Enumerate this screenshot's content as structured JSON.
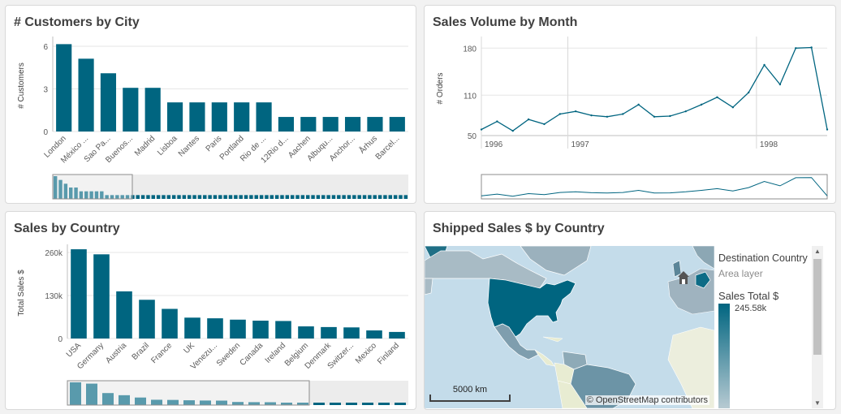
{
  "colors": {
    "primary": "#006580",
    "bg": "#f2f2f2",
    "grid": "#e6e6e6",
    "scroll": "#ececec"
  },
  "panels": {
    "customers": {
      "title": "# Customers by City"
    },
    "sales_volume": {
      "title": "Sales Volume by Month"
    },
    "sales_country": {
      "title": "Sales by Country"
    },
    "shipped": {
      "title": "Shipped Sales $ by Country"
    }
  },
  "map": {
    "legend_title": "Destination Country",
    "legend_subtitle": "Area layer",
    "legend_measure": "Sales Total $",
    "legend_max": "245.58k",
    "scale_label": "5000 km",
    "credit": "© OpenStreetMap contributors",
    "home_icon": "home-icon",
    "scroll_up_icon": "triangle-up-icon",
    "scroll_down_icon": "triangle-down-icon"
  },
  "chart_data": [
    {
      "type": "bar",
      "title": "# Customers by City",
      "ylabel": "# Customers",
      "xlabel": "",
      "ylim": [
        0,
        6.3
      ],
      "yticks": [
        "6",
        "3",
        "0"
      ],
      "categories": [
        "London",
        "México ...",
        "Sao Pa...",
        "Buenos...",
        "Madrid",
        "Lisboa",
        "Nantes",
        "Paris",
        "Portland",
        "Rio de ...",
        "12Rio d...",
        "Aachen",
        "Albuqu...",
        "Anchor...",
        "Århus",
        "Barcel..."
      ],
      "values": [
        6,
        5,
        4,
        3,
        3,
        2,
        2,
        2,
        2,
        2,
        1,
        1,
        1,
        1,
        1,
        1
      ],
      "minimap_values": [
        6,
        5,
        4,
        3,
        3,
        2,
        2,
        2,
        2,
        2,
        1,
        1,
        1,
        1,
        1,
        1,
        1,
        1,
        1,
        1,
        1,
        1,
        1,
        1,
        1,
        1,
        1,
        1,
        1,
        1,
        1,
        1,
        1,
        1,
        1,
        1,
        1,
        1,
        1,
        1,
        1,
        1,
        1,
        1,
        1,
        1,
        1,
        1,
        1,
        1,
        1,
        1,
        1,
        1,
        1,
        1,
        1,
        1,
        1,
        1,
        1,
        1,
        1,
        1,
        1,
        1,
        1,
        1,
        1
      ],
      "legend": "none",
      "grid": true
    },
    {
      "type": "line",
      "title": "Sales Volume by Month",
      "ylabel": "# Orders",
      "xlabel": "",
      "ylim": [
        50,
        190
      ],
      "yticks": [
        "180",
        "110",
        "50"
      ],
      "x": [
        "1996-07",
        "1996-08",
        "1996-09",
        "1996-10",
        "1996-11",
        "1996-12",
        "1997-01",
        "1997-02",
        "1997-03",
        "1997-04",
        "1997-05",
        "1997-06",
        "1997-07",
        "1997-08",
        "1997-09",
        "1997-10",
        "1997-11",
        "1997-12",
        "1998-01",
        "1998-02",
        "1998-03",
        "1998-04",
        "1998-05"
      ],
      "xticks": [
        "1996",
        "1997",
        "1998"
      ],
      "values": [
        59,
        71,
        57,
        74,
        67,
        82,
        86,
        80,
        78,
        82,
        96,
        78,
        79,
        86,
        96,
        107,
        92,
        114,
        155,
        126,
        180,
        181,
        59
      ],
      "legend": "none",
      "grid": true
    },
    {
      "type": "bar",
      "title": "Sales by Country",
      "ylabel": "Total Sales $",
      "xlabel": "",
      "ylim": [
        0,
        270000
      ],
      "yticks": [
        "260k",
        "130k",
        "0"
      ],
      "categories": [
        "USA",
        "Germany",
        "Austria",
        "Brazil",
        "France",
        "UK",
        "Venezu...",
        "Sweden",
        "Canada",
        "Ireland",
        "Belgium",
        "Denmark",
        "Switzer...",
        "Mexico",
        "Finland"
      ],
      "values": [
        265000,
        250000,
        140000,
        115000,
        88000,
        62000,
        60000,
        56000,
        53000,
        52000,
        36000,
        34000,
        33000,
        24000,
        19500
      ],
      "minimap_values": [
        265000,
        250000,
        140000,
        115000,
        88000,
        62000,
        60000,
        56000,
        53000,
        52000,
        36000,
        34000,
        33000,
        24000,
        19500,
        18000,
        16000,
        12000,
        10000,
        8000,
        5000
      ],
      "legend": "none",
      "grid": true
    }
  ]
}
